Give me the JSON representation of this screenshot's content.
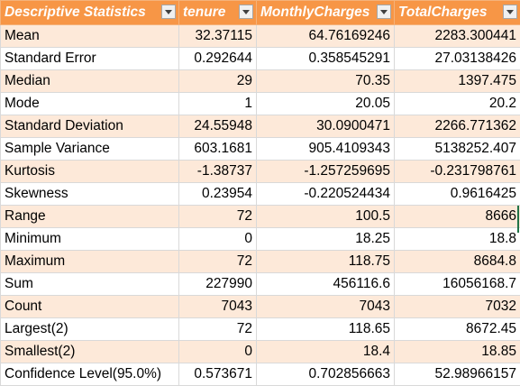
{
  "headers": [
    "Descriptive Statistics",
    "tenure",
    "MonthlyCharges",
    "TotalCharges"
  ],
  "rows": [
    {
      "label": "Mean",
      "v1": "32.37115",
      "v2": "64.76169246",
      "v3": "2283.300441"
    },
    {
      "label": "Standard Error",
      "v1": "0.292644",
      "v2": "0.358545291",
      "v3": "27.03138426"
    },
    {
      "label": "Median",
      "v1": "29",
      "v2": "70.35",
      "v3": "1397.475"
    },
    {
      "label": "Mode",
      "v1": "1",
      "v2": "20.05",
      "v3": "20.2"
    },
    {
      "label": "Standard Deviation",
      "v1": "24.55948",
      "v2": "30.0900471",
      "v3": "2266.771362"
    },
    {
      "label": "Sample Variance",
      "v1": "603.1681",
      "v2": "905.4109343",
      "v3": "5138252.407"
    },
    {
      "label": "Kurtosis",
      "v1": "-1.38737",
      "v2": "-1.257259695",
      "v3": "-0.231798761"
    },
    {
      "label": "Skewness",
      "v1": "0.23954",
      "v2": "-0.220524434",
      "v3": "0.9616425"
    },
    {
      "label": "Range",
      "v1": "72",
      "v2": "100.5",
      "v3": "8666"
    },
    {
      "label": "Minimum",
      "v1": "0",
      "v2": "18.25",
      "v3": "18.8"
    },
    {
      "label": "Maximum",
      "v1": "72",
      "v2": "118.75",
      "v3": "8684.8"
    },
    {
      "label": "Sum",
      "v1": "227990",
      "v2": "456116.6",
      "v3": "16056168.7"
    },
    {
      "label": "Count",
      "v1": "7043",
      "v2": "7043",
      "v3": "7032"
    },
    {
      "label": "Largest(2)",
      "v1": "72",
      "v2": "118.65",
      "v3": "8672.45"
    },
    {
      "label": "Smallest(2)",
      "v1": "0",
      "v2": "18.4",
      "v3": "18.85"
    },
    {
      "label": "Confidence Level(95.0%)",
      "v1": "0.573671",
      "v2": "0.702856663",
      "v3": "52.98966157"
    }
  ],
  "colors": {
    "header_bg": "#f79646",
    "header_text": "#ffffff",
    "band_bg": "#fde9d9",
    "plain_bg": "#ffffff"
  },
  "icons": {
    "filter": "filter-dropdown-icon"
  }
}
